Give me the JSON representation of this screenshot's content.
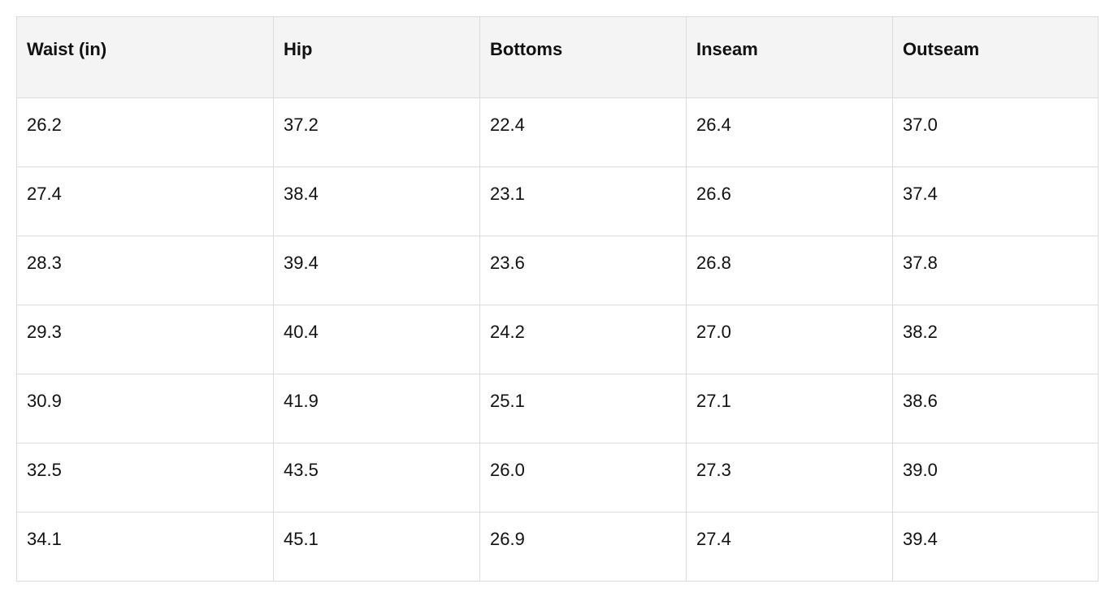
{
  "table": {
    "header": [
      "Waist (in)",
      "Hip",
      "Bottoms",
      "Inseam",
      "Outseam"
    ],
    "rows": [
      [
        "26.2",
        "37.2",
        "22.4",
        "26.4",
        "37.0"
      ],
      [
        "27.4",
        "38.4",
        "23.1",
        "26.6",
        "37.4"
      ],
      [
        "28.3",
        "39.4",
        "23.6",
        "26.8",
        "37.8"
      ],
      [
        "29.3",
        "40.4",
        "24.2",
        "27.0",
        "38.2"
      ],
      [
        "30.9",
        "41.9",
        "25.1",
        "27.1",
        "38.6"
      ],
      [
        "32.5",
        "43.5",
        "26.0",
        "27.3",
        "39.0"
      ],
      [
        "34.1",
        "45.1",
        "26.9",
        "27.4",
        "39.4"
      ]
    ]
  }
}
